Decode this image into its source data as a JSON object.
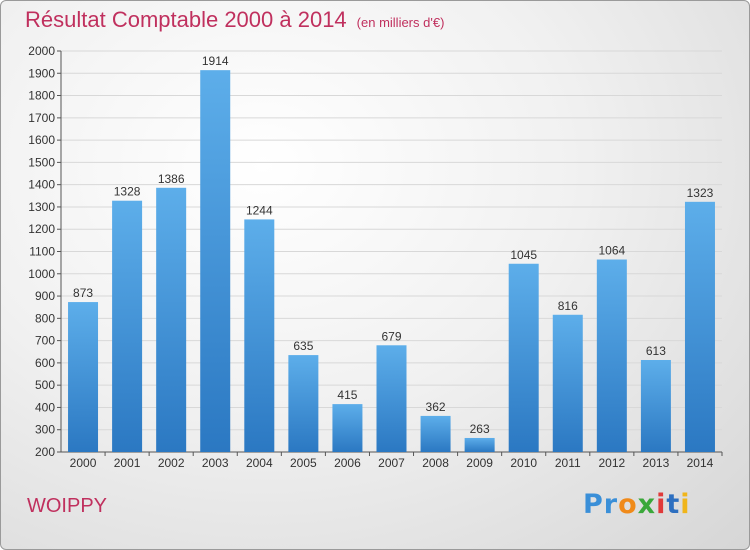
{
  "header": {
    "title": "Résultat Comptable 2000 à 2014",
    "subtitle": "(en milliers d'€)"
  },
  "footer": {
    "city": "WOIPPY",
    "logo": [
      "Pr",
      "o",
      "x",
      "i",
      "t",
      "i"
    ]
  },
  "colors": {
    "bar_light": "#5daeea",
    "bar_dark": "#2b78c2",
    "title": "#c0305e"
  },
  "chart_data": {
    "type": "bar",
    "title": "Résultat Comptable 2000 à 2014",
    "xlabel": "",
    "ylabel": "",
    "categories": [
      "2000",
      "2001",
      "2002",
      "2003",
      "2004",
      "2005",
      "2006",
      "2007",
      "2008",
      "2009",
      "2010",
      "2011",
      "2012",
      "2013",
      "2014"
    ],
    "values": [
      873,
      1328,
      1386,
      1914,
      1244,
      635,
      415,
      679,
      362,
      263,
      1045,
      816,
      1064,
      613,
      1323
    ],
    "ylim": [
      200,
      2000
    ],
    "yticks": [
      200,
      300,
      400,
      500,
      600,
      700,
      800,
      900,
      1000,
      1100,
      1200,
      1300,
      1400,
      1500,
      1600,
      1700,
      1800,
      1900,
      2000
    ],
    "grid": true,
    "legend": "none"
  }
}
